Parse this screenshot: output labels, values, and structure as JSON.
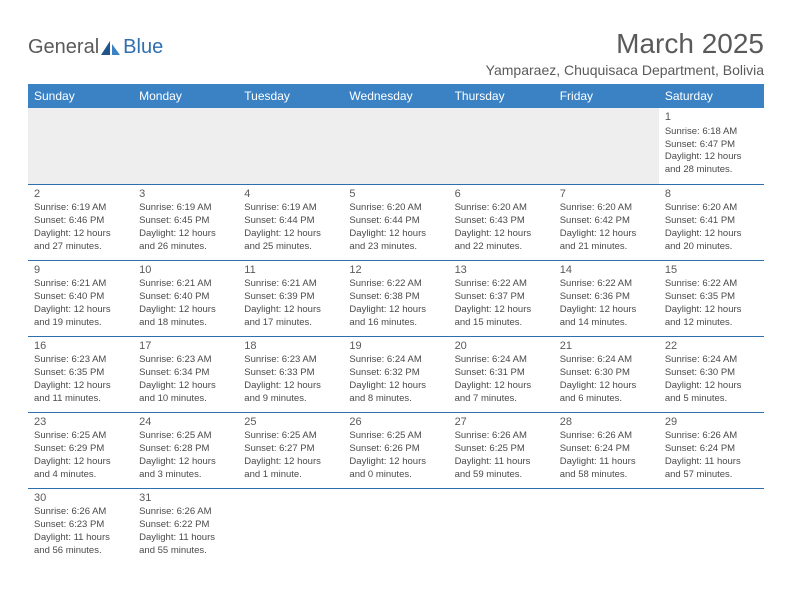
{
  "logo": {
    "part1": "General",
    "part2": "Blue"
  },
  "title": "March 2025",
  "location": "Yamparaez, Chuquisaca Department, Bolivia",
  "headers": [
    "Sunday",
    "Monday",
    "Tuesday",
    "Wednesday",
    "Thursday",
    "Friday",
    "Saturday"
  ],
  "colors": {
    "header_bg": "#3a82c4",
    "accent": "#2f6fb0",
    "text": "#4a4a4a",
    "blank_bg": "#eeeeee"
  },
  "weeks": [
    [
      null,
      null,
      null,
      null,
      null,
      null,
      {
        "n": "1",
        "sr": "Sunrise: 6:18 AM",
        "ss": "Sunset: 6:47 PM",
        "dl1": "Daylight: 12 hours",
        "dl2": "and 28 minutes."
      }
    ],
    [
      {
        "n": "2",
        "sr": "Sunrise: 6:19 AM",
        "ss": "Sunset: 6:46 PM",
        "dl1": "Daylight: 12 hours",
        "dl2": "and 27 minutes."
      },
      {
        "n": "3",
        "sr": "Sunrise: 6:19 AM",
        "ss": "Sunset: 6:45 PM",
        "dl1": "Daylight: 12 hours",
        "dl2": "and 26 minutes."
      },
      {
        "n": "4",
        "sr": "Sunrise: 6:19 AM",
        "ss": "Sunset: 6:44 PM",
        "dl1": "Daylight: 12 hours",
        "dl2": "and 25 minutes."
      },
      {
        "n": "5",
        "sr": "Sunrise: 6:20 AM",
        "ss": "Sunset: 6:44 PM",
        "dl1": "Daylight: 12 hours",
        "dl2": "and 23 minutes."
      },
      {
        "n": "6",
        "sr": "Sunrise: 6:20 AM",
        "ss": "Sunset: 6:43 PM",
        "dl1": "Daylight: 12 hours",
        "dl2": "and 22 minutes."
      },
      {
        "n": "7",
        "sr": "Sunrise: 6:20 AM",
        "ss": "Sunset: 6:42 PM",
        "dl1": "Daylight: 12 hours",
        "dl2": "and 21 minutes."
      },
      {
        "n": "8",
        "sr": "Sunrise: 6:20 AM",
        "ss": "Sunset: 6:41 PM",
        "dl1": "Daylight: 12 hours",
        "dl2": "and 20 minutes."
      }
    ],
    [
      {
        "n": "9",
        "sr": "Sunrise: 6:21 AM",
        "ss": "Sunset: 6:40 PM",
        "dl1": "Daylight: 12 hours",
        "dl2": "and 19 minutes."
      },
      {
        "n": "10",
        "sr": "Sunrise: 6:21 AM",
        "ss": "Sunset: 6:40 PM",
        "dl1": "Daylight: 12 hours",
        "dl2": "and 18 minutes."
      },
      {
        "n": "11",
        "sr": "Sunrise: 6:21 AM",
        "ss": "Sunset: 6:39 PM",
        "dl1": "Daylight: 12 hours",
        "dl2": "and 17 minutes."
      },
      {
        "n": "12",
        "sr": "Sunrise: 6:22 AM",
        "ss": "Sunset: 6:38 PM",
        "dl1": "Daylight: 12 hours",
        "dl2": "and 16 minutes."
      },
      {
        "n": "13",
        "sr": "Sunrise: 6:22 AM",
        "ss": "Sunset: 6:37 PM",
        "dl1": "Daylight: 12 hours",
        "dl2": "and 15 minutes."
      },
      {
        "n": "14",
        "sr": "Sunrise: 6:22 AM",
        "ss": "Sunset: 6:36 PM",
        "dl1": "Daylight: 12 hours",
        "dl2": "and 14 minutes."
      },
      {
        "n": "15",
        "sr": "Sunrise: 6:22 AM",
        "ss": "Sunset: 6:35 PM",
        "dl1": "Daylight: 12 hours",
        "dl2": "and 12 minutes."
      }
    ],
    [
      {
        "n": "16",
        "sr": "Sunrise: 6:23 AM",
        "ss": "Sunset: 6:35 PM",
        "dl1": "Daylight: 12 hours",
        "dl2": "and 11 minutes."
      },
      {
        "n": "17",
        "sr": "Sunrise: 6:23 AM",
        "ss": "Sunset: 6:34 PM",
        "dl1": "Daylight: 12 hours",
        "dl2": "and 10 minutes."
      },
      {
        "n": "18",
        "sr": "Sunrise: 6:23 AM",
        "ss": "Sunset: 6:33 PM",
        "dl1": "Daylight: 12 hours",
        "dl2": "and 9 minutes."
      },
      {
        "n": "19",
        "sr": "Sunrise: 6:24 AM",
        "ss": "Sunset: 6:32 PM",
        "dl1": "Daylight: 12 hours",
        "dl2": "and 8 minutes."
      },
      {
        "n": "20",
        "sr": "Sunrise: 6:24 AM",
        "ss": "Sunset: 6:31 PM",
        "dl1": "Daylight: 12 hours",
        "dl2": "and 7 minutes."
      },
      {
        "n": "21",
        "sr": "Sunrise: 6:24 AM",
        "ss": "Sunset: 6:30 PM",
        "dl1": "Daylight: 12 hours",
        "dl2": "and 6 minutes."
      },
      {
        "n": "22",
        "sr": "Sunrise: 6:24 AM",
        "ss": "Sunset: 6:30 PM",
        "dl1": "Daylight: 12 hours",
        "dl2": "and 5 minutes."
      }
    ],
    [
      {
        "n": "23",
        "sr": "Sunrise: 6:25 AM",
        "ss": "Sunset: 6:29 PM",
        "dl1": "Daylight: 12 hours",
        "dl2": "and 4 minutes."
      },
      {
        "n": "24",
        "sr": "Sunrise: 6:25 AM",
        "ss": "Sunset: 6:28 PM",
        "dl1": "Daylight: 12 hours",
        "dl2": "and 3 minutes."
      },
      {
        "n": "25",
        "sr": "Sunrise: 6:25 AM",
        "ss": "Sunset: 6:27 PM",
        "dl1": "Daylight: 12 hours",
        "dl2": "and 1 minute."
      },
      {
        "n": "26",
        "sr": "Sunrise: 6:25 AM",
        "ss": "Sunset: 6:26 PM",
        "dl1": "Daylight: 12 hours",
        "dl2": "and 0 minutes."
      },
      {
        "n": "27",
        "sr": "Sunrise: 6:26 AM",
        "ss": "Sunset: 6:25 PM",
        "dl1": "Daylight: 11 hours",
        "dl2": "and 59 minutes."
      },
      {
        "n": "28",
        "sr": "Sunrise: 6:26 AM",
        "ss": "Sunset: 6:24 PM",
        "dl1": "Daylight: 11 hours",
        "dl2": "and 58 minutes."
      },
      {
        "n": "29",
        "sr": "Sunrise: 6:26 AM",
        "ss": "Sunset: 6:24 PM",
        "dl1": "Daylight: 11 hours",
        "dl2": "and 57 minutes."
      }
    ],
    [
      {
        "n": "30",
        "sr": "Sunrise: 6:26 AM",
        "ss": "Sunset: 6:23 PM",
        "dl1": "Daylight: 11 hours",
        "dl2": "and 56 minutes."
      },
      {
        "n": "31",
        "sr": "Sunrise: 6:26 AM",
        "ss": "Sunset: 6:22 PM",
        "dl1": "Daylight: 11 hours",
        "dl2": "and 55 minutes."
      },
      null,
      null,
      null,
      null,
      null
    ]
  ]
}
